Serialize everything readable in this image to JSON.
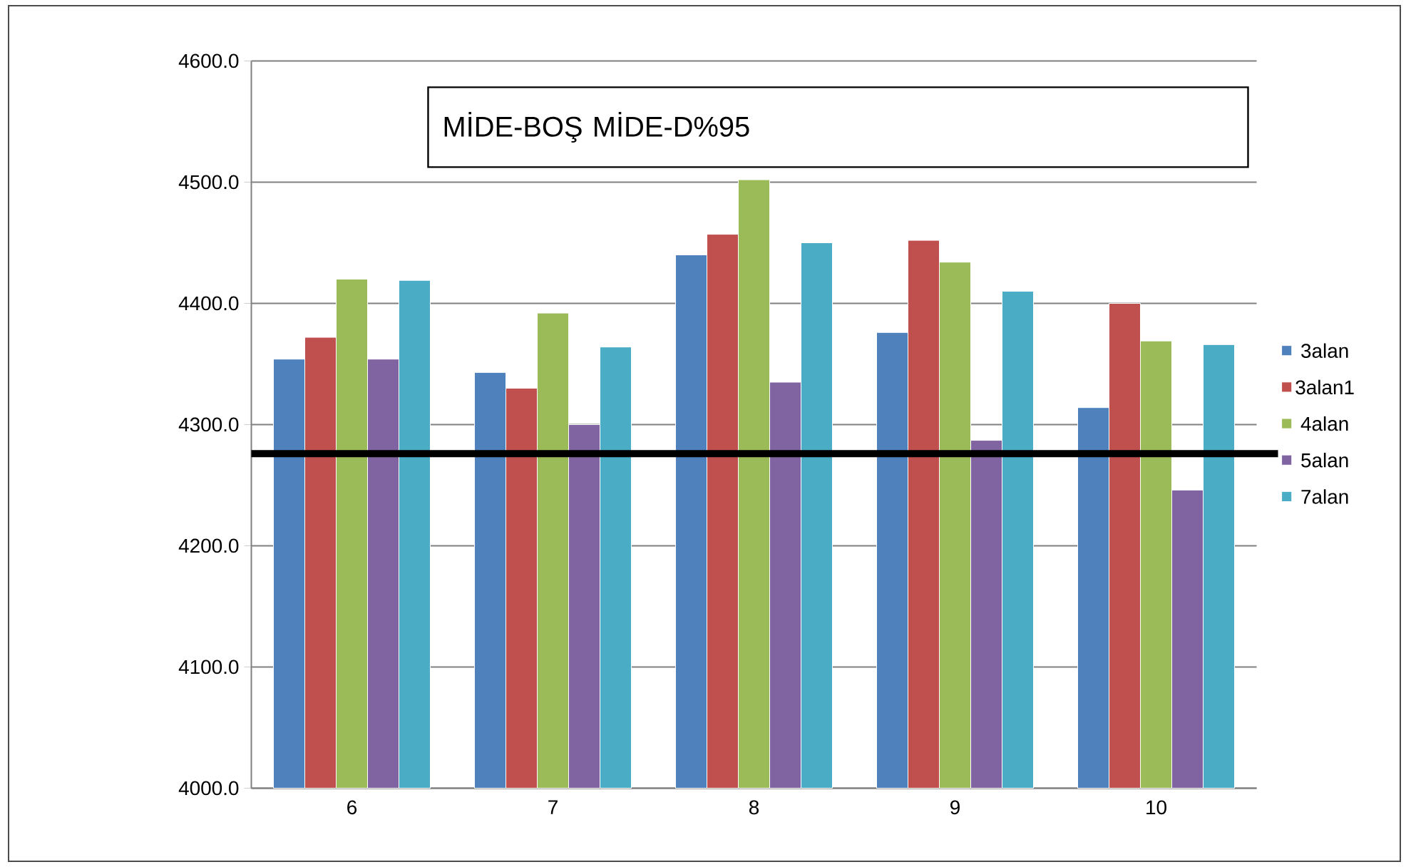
{
  "chart_data": {
    "type": "bar",
    "title": "MİDE-BOŞ MİDE-D%95",
    "categories": [
      "6",
      "7",
      "8",
      "9",
      "10"
    ],
    "series": [
      {
        "name": "3alan",
        "color": "#4f81bd",
        "values": [
          4354,
          4343,
          4440,
          4376,
          4314
        ]
      },
      {
        "name": "3alan1",
        "color": "#c0504d",
        "values": [
          4372,
          4330,
          4457,
          4452,
          4400
        ]
      },
      {
        "name": "4alan",
        "color": "#9bbb59",
        "values": [
          4420,
          4392,
          4502,
          4434,
          4369
        ]
      },
      {
        "name": "5alan",
        "color": "#8064a2",
        "values": [
          4354,
          4300,
          4335,
          4287,
          4246
        ]
      },
      {
        "name": "7alan",
        "color": "#4bacc6",
        "values": [
          4419,
          4364,
          4450,
          4410,
          4366
        ]
      }
    ],
    "ylim": [
      4000,
      4600
    ],
    "yticks": [
      {
        "value": 4000,
        "label": "4000.0"
      },
      {
        "value": 4100,
        "label": "4100.0"
      },
      {
        "value": 4200,
        "label": "4200.0"
      },
      {
        "value": 4300,
        "label": "4300.0"
      },
      {
        "value": 4400,
        "label": "4400.0"
      },
      {
        "value": 4500,
        "label": "4500.0"
      },
      {
        "value": 4600,
        "label": "4600.0"
      }
    ],
    "ref_lines": [
      {
        "axis": "y",
        "value": 4276,
        "color": "#000000"
      }
    ],
    "grid": "y",
    "legend": "right"
  }
}
